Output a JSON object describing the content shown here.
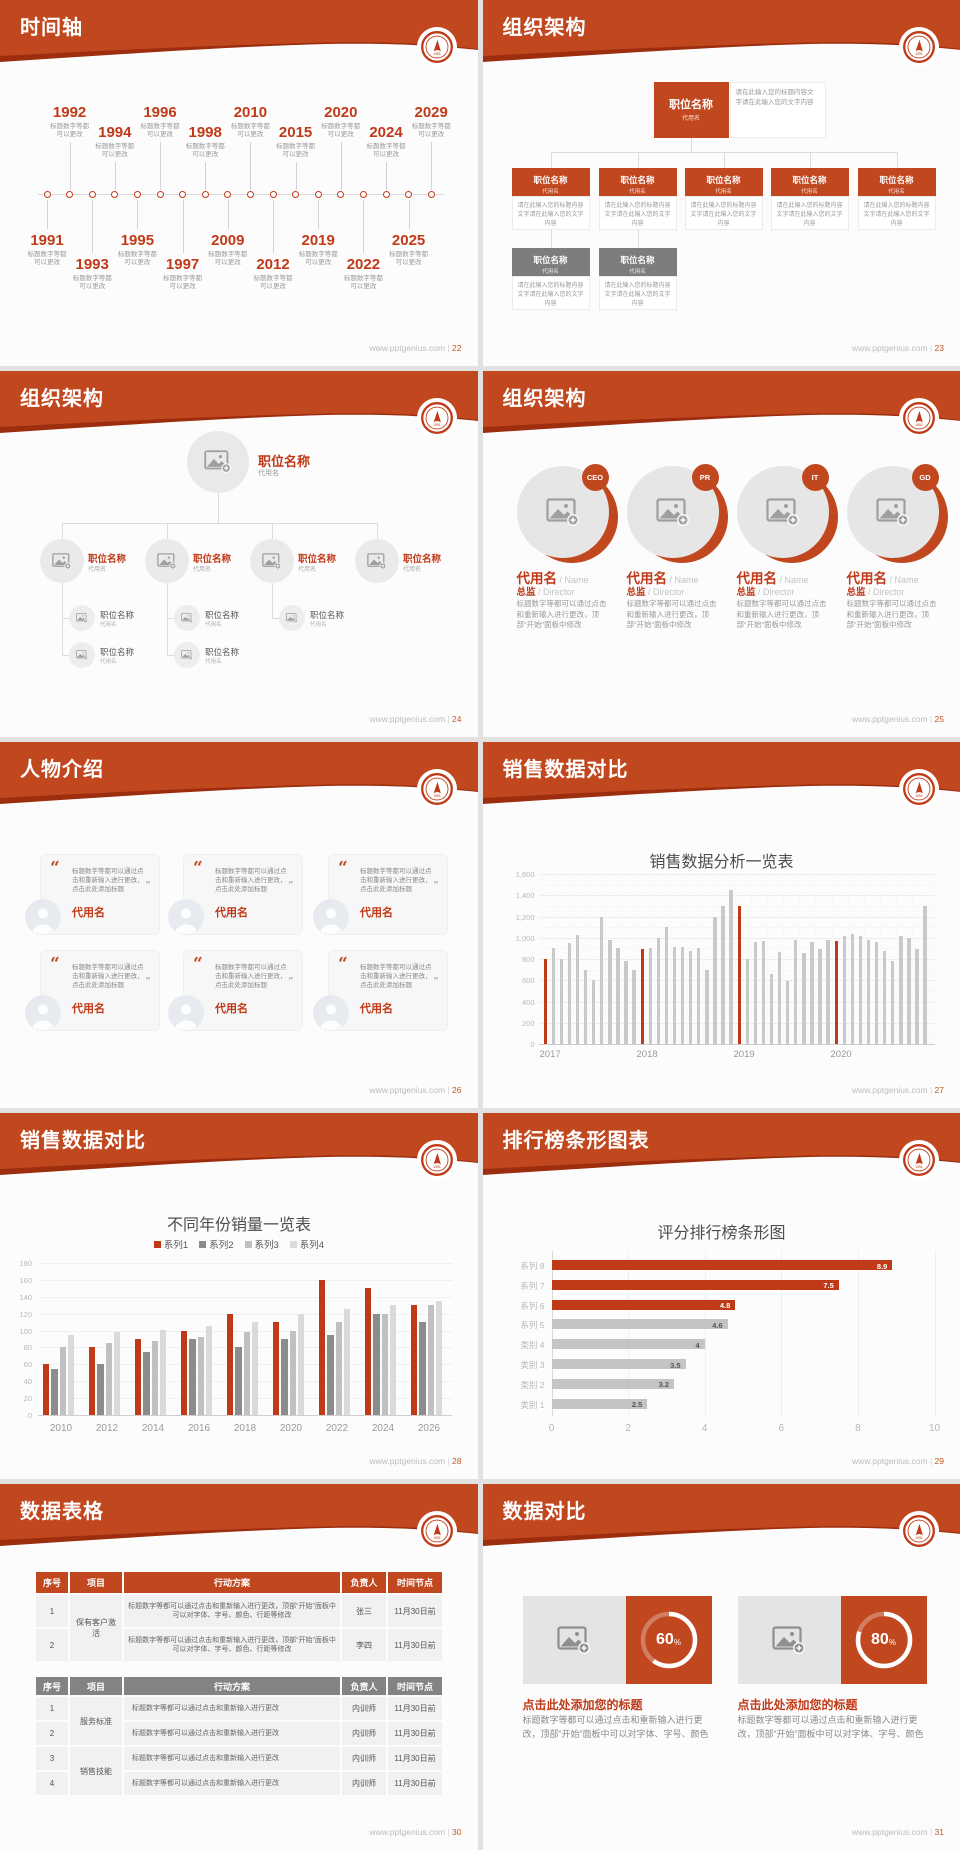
{
  "site": "www.pptgenius.com",
  "colors": {
    "accent": "#c1471f",
    "accent_dark": "#9c2d0e",
    "red": "#c03a18",
    "bar_gray": "#c9c9c9",
    "gray_box": "#7d7d7d",
    "table_gray": "#838383"
  },
  "s22": {
    "title": "时间轴",
    "page": "22",
    "caption1": "标题数字等都",
    "caption2": "可以更改",
    "years": [
      "1991",
      "1992",
      "1993",
      "1994",
      "1995",
      "1996",
      "1997",
      "1998",
      "2009",
      "2010",
      "2012",
      "2015",
      "2019",
      "2020",
      "2022",
      "2024",
      "2025",
      "2029"
    ]
  },
  "s23": {
    "title": "组织架构",
    "page": "23",
    "box_title": "职位名称",
    "box_sub": "代用名",
    "note": "请在此输入您的标题内容文字请在此输入您的文字内容"
  },
  "s24": {
    "title": "组织架构",
    "page": "24",
    "node_title": "职位名称",
    "node_sub": "代用名",
    "branches": [
      2,
      2,
      1
    ]
  },
  "s25": {
    "title": "组织架构",
    "page": "25",
    "badges": [
      "CEO",
      "PR",
      "IT",
      "GD"
    ],
    "name": "代用名",
    "name_en": "Name",
    "role": "总监",
    "role_en": "Director",
    "desc": "标题数字等都可以通过点击和重新输入进行更改，顶部“开始”面板中修改"
  },
  "s26": {
    "title": "人物介绍",
    "page": "26",
    "quote_open": "“",
    "quote_close": "”",
    "text": "标题数字等都可以通过点击和重新输入进行更改，点击此处添加标题",
    "name": "代用名"
  },
  "s27": {
    "title": "销售数据对比",
    "page": "27"
  },
  "s28": {
    "title": "销售数据对比",
    "page": "28"
  },
  "s29": {
    "title": "排行榜条形图表",
    "page": "29"
  },
  "s30": {
    "title": "数据表格",
    "page": "30",
    "t1": {
      "headers": [
        "序号",
        "项目",
        "行动方案",
        "负责人",
        "时间节点"
      ],
      "project": "保有客户激活",
      "plan": "标题数字等都可以通过点击和重新输入进行更改，顶部“开始”面板中可以对字体、字号、颜色、行距等修改",
      "rows": [
        {
          "no": "1",
          "person": "张三",
          "time": "11月30日前"
        },
        {
          "no": "2",
          "person": "李四",
          "time": "11月30日前"
        }
      ]
    },
    "t2": {
      "headers": [
        "序号",
        "项目",
        "行动方案",
        "负责人",
        "时间节点"
      ],
      "projects": [
        "服务标准",
        "销售技能"
      ],
      "plan": "标题数字等都可以通过点击和重新输入进行更改",
      "rows": [
        {
          "no": "1",
          "person": "内训师",
          "time": "11月30日前"
        },
        {
          "no": "2",
          "person": "内训师",
          "time": "11月30日前"
        },
        {
          "no": "3",
          "person": "内训师",
          "time": "11月30日前"
        },
        {
          "no": "4",
          "person": "内训师",
          "time": "11月30日前"
        }
      ]
    }
  },
  "s31": {
    "title": "数据对比",
    "page": "31",
    "card_title": "点击此处添加您的标题",
    "card_desc": "标题数字等都可以通过点击和重新输入进行更改，顶部“开始”面板中可以对字体、字号、颜色",
    "cards": [
      {
        "percent": 60
      },
      {
        "percent": 80
      }
    ]
  },
  "chart_data": [
    {
      "type": "bar",
      "slide": "27",
      "title": "销售数据分析一览表",
      "x_groups": [
        "2017",
        "2018",
        "2019",
        "2020"
      ],
      "ylim": [
        0,
        1600
      ],
      "ytick_step": 200,
      "grid": true,
      "bars_per_group": 12,
      "values": [
        800,
        900,
        800,
        950,
        1030,
        700,
        600,
        1200,
        980,
        900,
        780,
        700,
        890,
        900,
        1000,
        1100,
        910,
        910,
        880,
        900,
        700,
        1200,
        1300,
        1450,
        1300,
        800,
        960,
        970,
        660,
        870,
        590,
        980,
        860,
        960,
        890,
        980,
        970,
        1020,
        1040,
        1020,
        980,
        960,
        880,
        780,
        1020,
        1000,
        890,
        1300
      ],
      "highlight_every": 12,
      "highlight_color": "#c03a18",
      "bar_color": "#c9c9c9"
    },
    {
      "type": "bar",
      "slide": "28",
      "title": "不同年份销量一览表",
      "categories": [
        "2010",
        "2012",
        "2014",
        "2016",
        "2018",
        "2020",
        "2022",
        "2024",
        "2026"
      ],
      "ylim": [
        0,
        180
      ],
      "ytick_step": 20,
      "grid": true,
      "legend_position": "top",
      "series": [
        {
          "name": "系列1",
          "color": "#c03a18",
          "values": [
            60,
            80,
            90,
            100,
            120,
            110,
            160,
            150,
            130
          ]
        },
        {
          "name": "系列2",
          "color": "#8c8c8c",
          "values": [
            55,
            60,
            75,
            90,
            80,
            90,
            95,
            120,
            110
          ]
        },
        {
          "name": "系列3",
          "color": "#c0c0c0",
          "values": [
            80,
            85,
            88,
            92,
            98,
            100,
            110,
            120,
            130
          ]
        },
        {
          "name": "系列4",
          "color": "#dadada",
          "values": [
            95,
            98,
            101,
            105,
            110,
            120,
            125,
            130,
            135
          ]
        }
      ]
    },
    {
      "type": "bar",
      "slide": "29",
      "orientation": "horizontal",
      "title": "评分排行榜条形图",
      "xlim": [
        0,
        10
      ],
      "xtick_step": 2,
      "grid": true,
      "items": [
        {
          "label": "系列 8",
          "value": 8.9,
          "color": "#c03a18"
        },
        {
          "label": "系列 7",
          "value": 7.5,
          "color": "#c03a18"
        },
        {
          "label": "系列 6",
          "value": 4.8,
          "color": "#c03a18"
        },
        {
          "label": "系列 5",
          "value": 4.6,
          "color": "#c4c4c4"
        },
        {
          "label": "类别 4",
          "value": 4,
          "color": "#c4c4c4"
        },
        {
          "label": "类别 3",
          "value": 3.5,
          "color": "#c4c4c4"
        },
        {
          "label": "类别 2",
          "value": 3.2,
          "color": "#c4c4c4"
        },
        {
          "label": "类别 1",
          "value": 2.5,
          "color": "#c4c4c4"
        }
      ]
    },
    {
      "type": "pie",
      "slide": "31",
      "subtype": "donut",
      "values": [
        {
          "label": "点击此处添加您的标题",
          "percent": 60
        },
        {
          "label": "点击此处添加您的标题",
          "percent": 80
        }
      ]
    }
  ]
}
